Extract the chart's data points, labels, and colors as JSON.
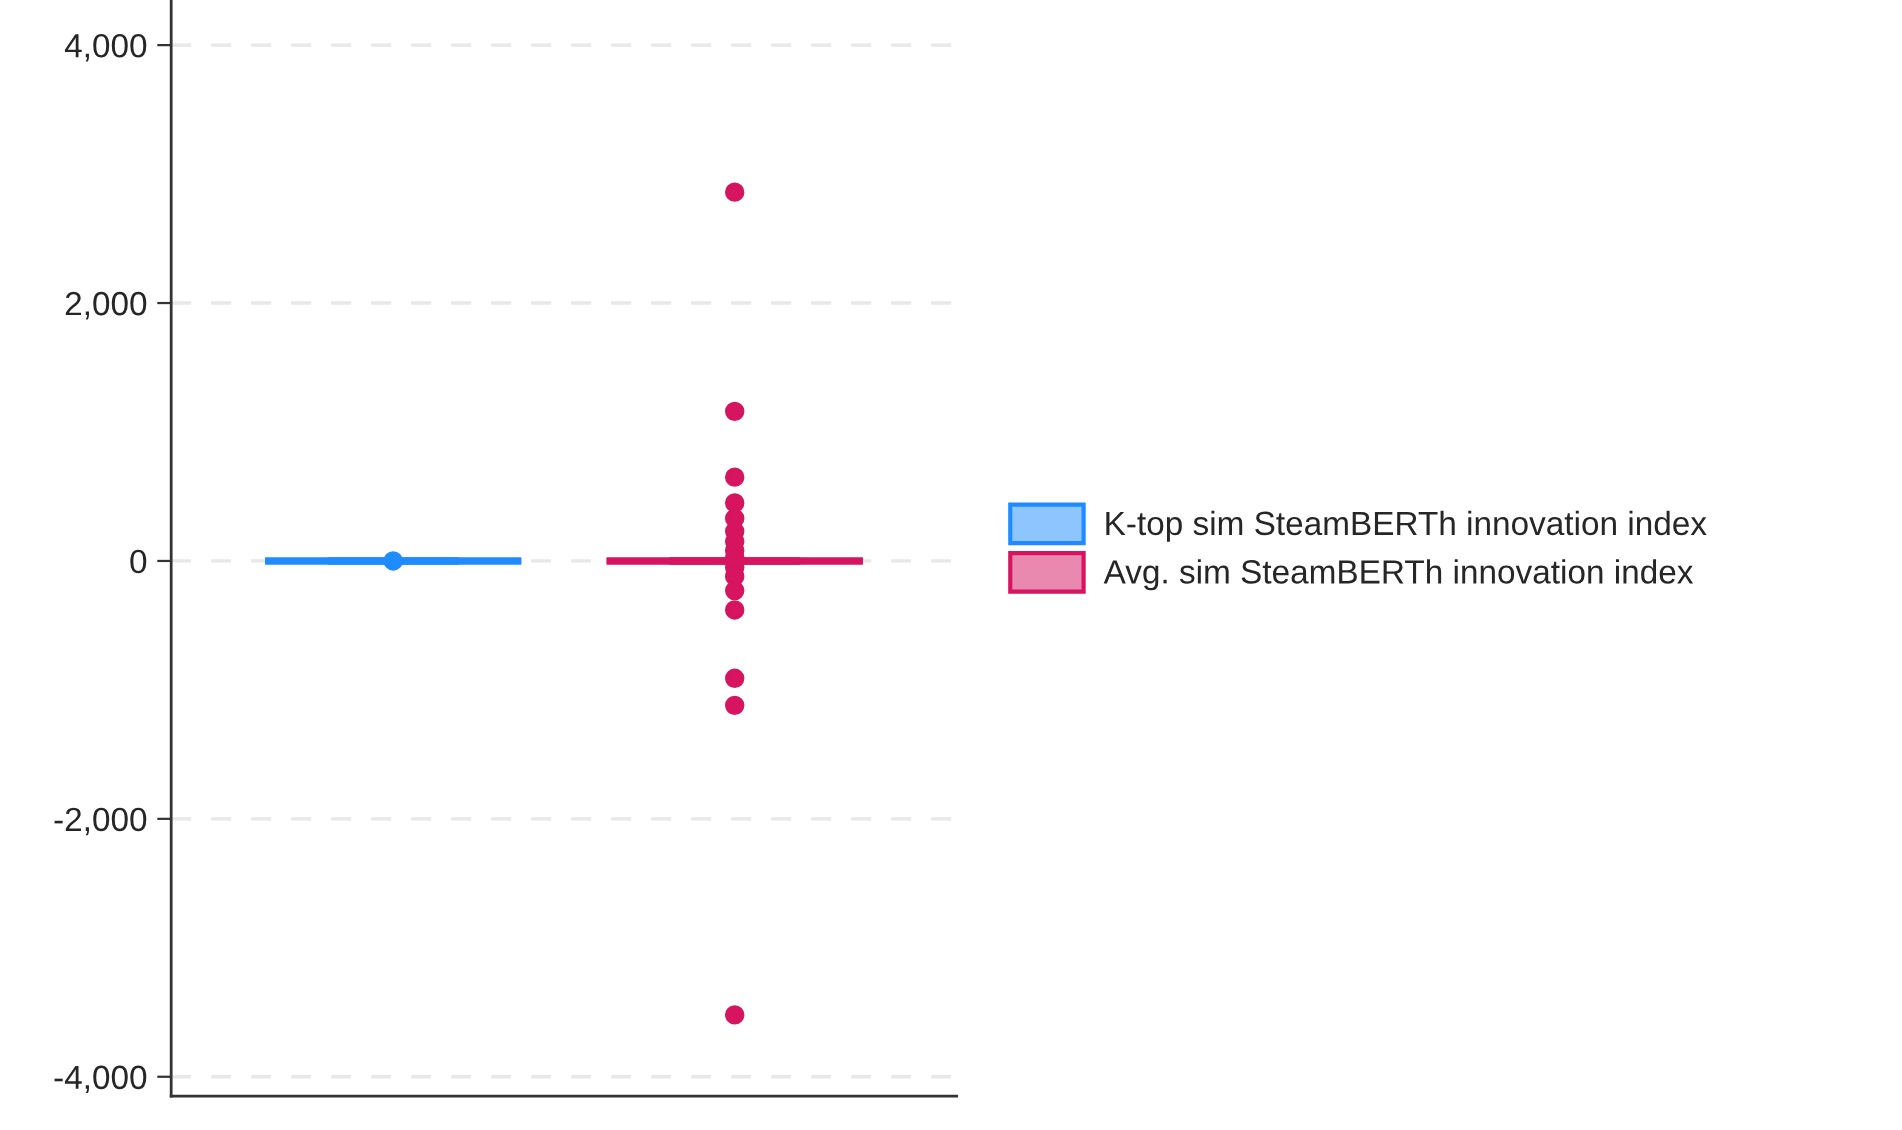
{
  "chart_data": {
    "type": "box",
    "categories": [
      null,
      null
    ],
    "series": [
      {
        "name": "K-top sim SteamBERTh innovation index",
        "color": "#1e8cff",
        "boxes": [
          {
            "low": 0,
            "q1": 0,
            "median": 0,
            "q3": 0,
            "high": 0,
            "outliers": [
              0
            ]
          },
          null
        ]
      },
      {
        "name": "Avg. sim SteamBERTh innovation index",
        "color": "#d6145f",
        "boxes": [
          null,
          {
            "low": 0,
            "q1": 0,
            "median": 0,
            "q3": 0,
            "high": 0,
            "outliers": [
              2860,
              1160,
              650,
              450,
              330,
              230,
              150,
              80,
              30,
              -50,
              -120,
              -230,
              -380,
              -910,
              -1120,
              -3520
            ]
          }
        ]
      }
    ],
    "ylim": [
      -4150,
      4350
    ],
    "yticks": [
      {
        "value": -4000,
        "label": "-4,000"
      },
      {
        "value": -2000,
        "label": "-2,000"
      },
      0,
      {
        "value": 2000,
        "label": "2,000"
      },
      {
        "value": 4000,
        "label": "4,000"
      }
    ],
    "grid": "y",
    "legend": "right",
    "tick_labels": "y"
  }
}
